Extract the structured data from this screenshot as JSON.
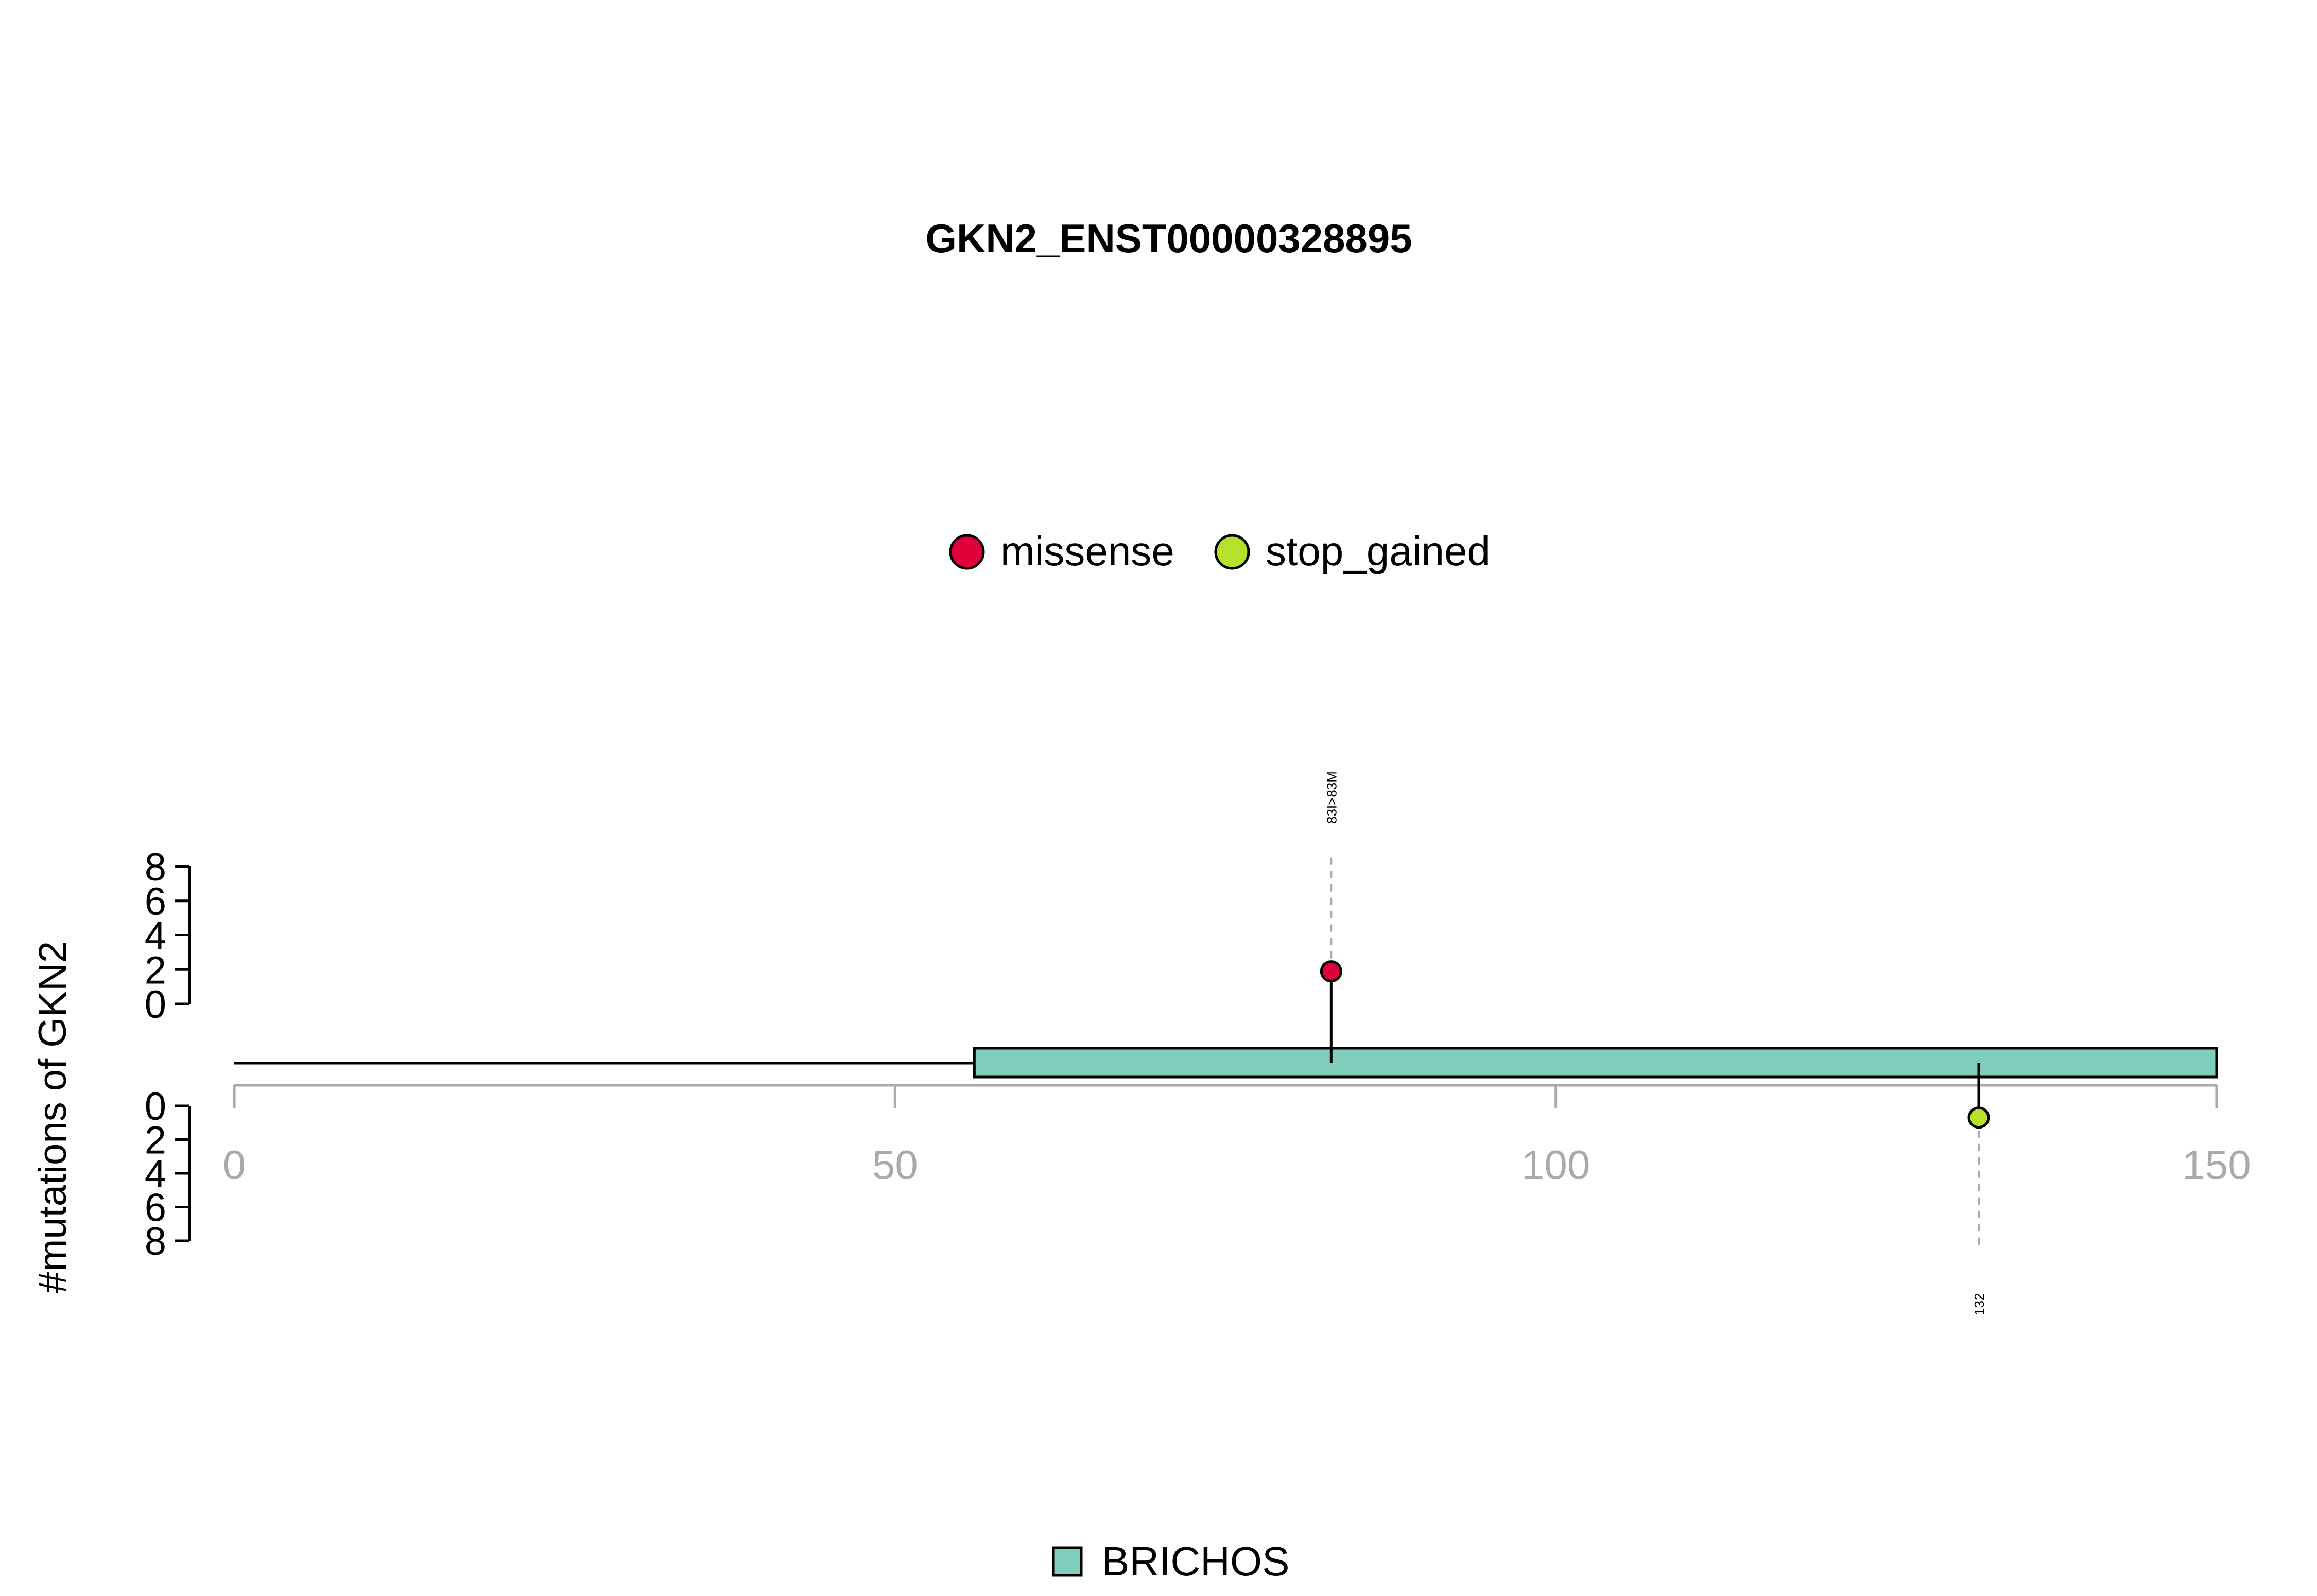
{
  "chart_data": {
    "type": "lollipop",
    "title": "GKN2_ENST00000328895",
    "ylabel": "#mutations of GKN2",
    "xlim": [
      0,
      150
    ],
    "x_ticks": [
      0,
      50,
      100,
      150
    ],
    "y_ticks_upper": [
      0,
      2,
      4,
      6,
      8
    ],
    "y_ticks_lower": [
      0,
      2,
      4,
      6,
      8
    ],
    "ylim": [
      0,
      8
    ],
    "protein_length": 150,
    "domains": [
      {
        "name": "BRICHOS",
        "start": 56,
        "end": 150,
        "color": "#7FCDBB"
      }
    ],
    "mutation_legend": [
      {
        "name": "missense",
        "color": "#E0003A"
      },
      {
        "name": "stop_gained",
        "color": "#B5E02C"
      }
    ],
    "mutations": [
      {
        "position": 83,
        "count": 1,
        "type": "missense",
        "label": "83I>83M",
        "side": "upper",
        "color": "#E0003A"
      },
      {
        "position": 132,
        "count": 1,
        "type": "stop_gained",
        "label": "132",
        "side": "lower",
        "color": "#B5E02C"
      }
    ]
  }
}
